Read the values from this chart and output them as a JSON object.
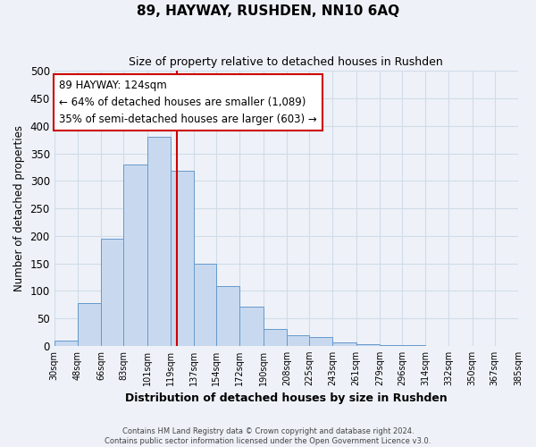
{
  "title": "89, HAYWAY, RUSHDEN, NN10 6AQ",
  "subtitle": "Size of property relative to detached houses in Rushden",
  "xlabel": "Distribution of detached houses by size in Rushden",
  "ylabel": "Number of detached properties",
  "bar_color": "#c8d9ef",
  "bar_edge_color": "#6699cc",
  "vline_x": 124,
  "vline_color": "#cc0000",
  "annotation_title": "89 HAYWAY: 124sqm",
  "annotation_line1": "← 64% of detached houses are smaller (1,089)",
  "annotation_line2": "35% of semi-detached houses are larger (603) →",
  "annotation_box_color": "white",
  "annotation_box_edge": "#cc0000",
  "ylim": [
    0,
    500
  ],
  "yticks": [
    0,
    50,
    100,
    150,
    200,
    250,
    300,
    350,
    400,
    450,
    500
  ],
  "bin_edges": [
    30,
    48,
    66,
    83,
    101,
    119,
    137,
    154,
    172,
    190,
    208,
    225,
    243,
    261,
    279,
    296,
    314,
    332,
    350,
    367,
    385
  ],
  "bin_labels": [
    "30sqm",
    "48sqm",
    "66sqm",
    "83sqm",
    "101sqm",
    "119sqm",
    "137sqm",
    "154sqm",
    "172sqm",
    "190sqm",
    "208sqm",
    "225sqm",
    "243sqm",
    "261sqm",
    "279sqm",
    "296sqm",
    "314sqm",
    "332sqm",
    "350sqm",
    "367sqm",
    "385sqm"
  ],
  "counts": [
    10,
    78,
    195,
    330,
    380,
    318,
    150,
    108,
    72,
    30,
    20,
    16,
    7,
    3,
    2,
    1,
    0,
    0,
    0,
    0
  ],
  "footer_line1": "Contains HM Land Registry data © Crown copyright and database right 2024.",
  "footer_line2": "Contains public sector information licensed under the Open Government Licence v3.0.",
  "grid_color": "#d0dce8",
  "bg_color": "#eef2f8"
}
